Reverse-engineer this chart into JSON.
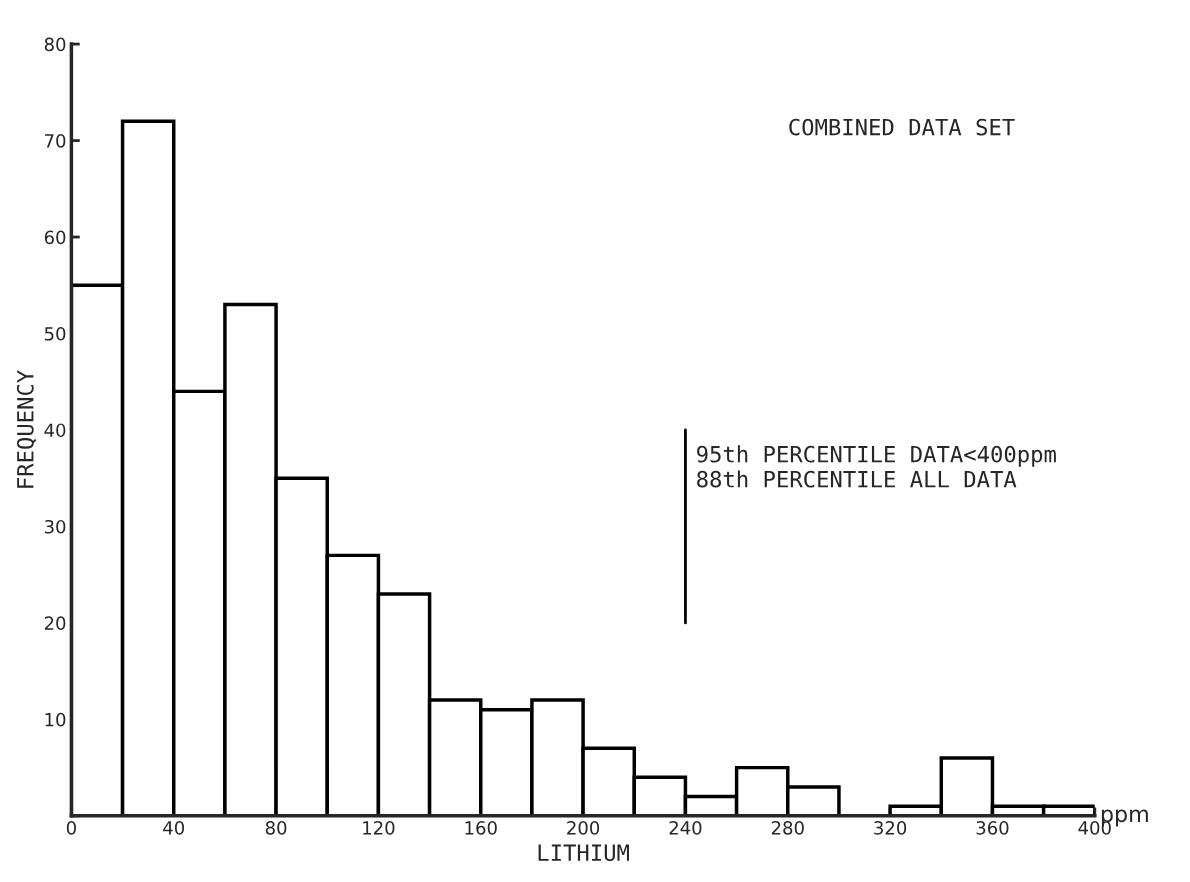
{
  "chart_data": {
    "type": "histogram",
    "bins": [
      0,
      20,
      40,
      60,
      80,
      100,
      120,
      140,
      160,
      180,
      200,
      220,
      240,
      260,
      280,
      300,
      320,
      340,
      360,
      380,
      400
    ],
    "values": [
      55,
      72,
      44,
      53,
      35,
      27,
      23,
      12,
      11,
      12,
      7,
      4,
      2,
      5,
      3,
      0,
      1,
      6,
      1,
      1
    ],
    "color": "#ffffff",
    "xlabel": "LITHIUM",
    "ylabel": "FREQUENCY",
    "xlim": [
      0,
      400
    ],
    "xticks": [
      0,
      40,
      80,
      120,
      160,
      200,
      240,
      280,
      320,
      360,
      400
    ],
    "ylim": [
      0,
      80
    ],
    "yticks": [
      {
        "value": 0,
        "label": null
      },
      10,
      20,
      30,
      40,
      50,
      60,
      70,
      80
    ],
    "grid": false,
    "annotations": [
      "COMBINED DATA SET",
      "95th PERCENTILE DATA<400ppm\n88th PERCENTILE ALL DATA",
      "ppm"
    ]
  }
}
